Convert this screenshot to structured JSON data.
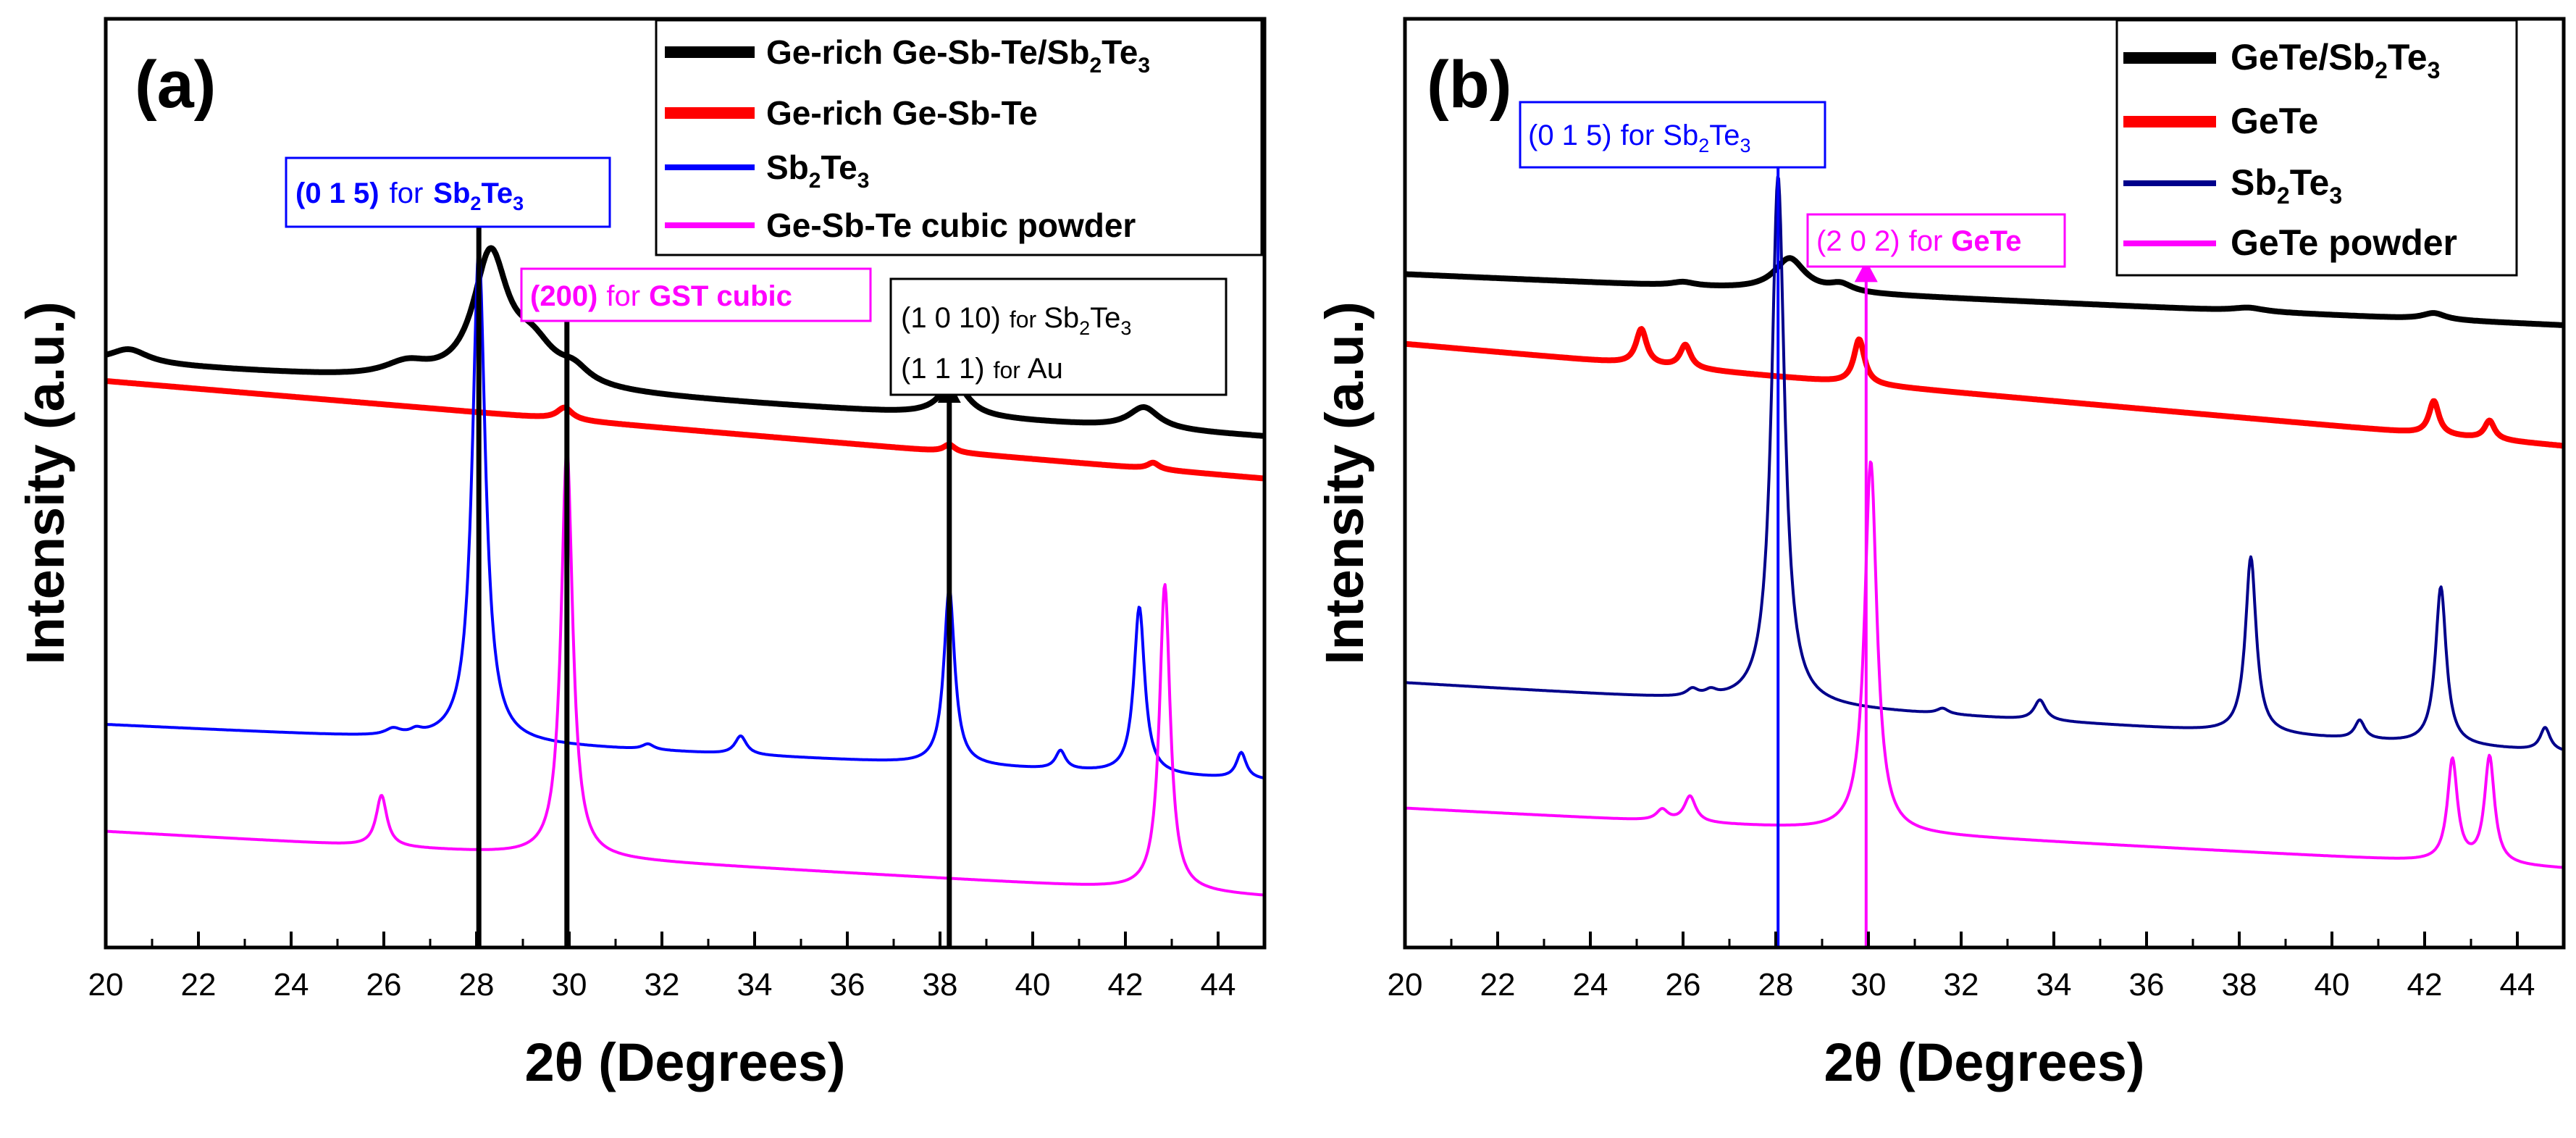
{
  "figure": {
    "panels": [
      {
        "id": "a",
        "panel_label": "(a)",
        "xlabel": "2θ (Degrees)",
        "ylabel": "Intensity (a.u.)",
        "legend": [
          {
            "prefix": "Ge-rich Ge-Sb-Te/Sb",
            "sub": "2",
            "mid": "Te",
            "sub2": "3",
            "color": "#000000"
          },
          {
            "prefix": "Ge-rich Ge-Sb-Te",
            "sub": "",
            "mid": "",
            "sub2": "",
            "color": "#ff0000"
          },
          {
            "prefix": "Sb",
            "sub": "2",
            "mid": "Te",
            "sub2": "3",
            "color": "#0000ff"
          },
          {
            "prefix": "Ge-Sb-Te cubic powder",
            "sub": "",
            "mid": "",
            "sub2": "",
            "color": "#ff00ff"
          }
        ],
        "annotations": {
          "sb2te3_015": {
            "miller": "(0 1 5)",
            "for": "for",
            "phase_prefix": "Sb",
            "phase_sub": "2",
            "phase_mid": "Te",
            "phase_sub2": "3",
            "color": "#0000ff"
          },
          "gst_200": {
            "miller": "(200)",
            "for": "for",
            "phase": "GST cubic",
            "color": "#ff00ff"
          },
          "sb2te3_1010": {
            "miller": "(1 0 10)",
            "for": "for",
            "phase_prefix": "Sb",
            "phase_sub": "2",
            "phase_mid": "Te",
            "phase_sub2": "3",
            "color": "#000000"
          },
          "au_111": {
            "miller": "(1 1 1)",
            "for": "for",
            "phase": "Au",
            "color": "#000000"
          }
        }
      },
      {
        "id": "b",
        "panel_label": "(b)",
        "xlabel": "2θ (Degrees)",
        "ylabel": "Intensity (a.u.)",
        "legend": [
          {
            "prefix": "GeTe/Sb",
            "sub": "2",
            "mid": "Te",
            "sub2": "3",
            "color": "#000000"
          },
          {
            "prefix": "GeTe",
            "sub": "",
            "mid": "",
            "sub2": "",
            "color": "#ff0000"
          },
          {
            "prefix": "Sb",
            "sub": "2",
            "mid": "Te",
            "sub2": "3",
            "color": "#00008b"
          },
          {
            "prefix": "GeTe powder",
            "sub": "",
            "mid": "",
            "sub2": "",
            "color": "#ff00ff"
          }
        ],
        "annotations": {
          "sb2te3_015": {
            "miller": "(0 1 5)",
            "for": "for",
            "phase_prefix": "Sb",
            "phase_sub": "2",
            "phase_mid": "Te",
            "phase_sub2": "3",
            "color": "#0000ff"
          },
          "gete_202": {
            "miller": "(2 0 2)",
            "for": "for",
            "phase": "GeTe",
            "color": "#ff00ff"
          }
        }
      }
    ]
  },
  "chart_data": [
    {
      "type": "line",
      "panel": "a",
      "xlabel": "2θ (Degrees)",
      "ylabel": "Intensity (a.u.)",
      "xlim": [
        20,
        45
      ],
      "ylim": [
        0,
        100
      ],
      "xticks": [
        "20",
        "22",
        "24",
        "26",
        "28",
        "30",
        "32",
        "34",
        "36",
        "38",
        "40",
        "42",
        "44"
      ],
      "yticks_visible": false,
      "series": [
        {
          "name": "Ge-rich Ge-Sb-Te/Sb2Te3",
          "color": "#000000",
          "width": 8,
          "baseline": [
            [
              20,
              63
            ],
            [
              45,
              55
            ]
          ],
          "peaks": [
            [
              20.5,
              1.5,
              0.5
            ],
            [
              26.5,
              1.5,
              0.6
            ],
            [
              28.3,
              13.5,
              0.45
            ],
            [
              29.2,
              4,
              0.6
            ],
            [
              30.1,
              1.5,
              0.4
            ],
            [
              38.3,
              3.8,
              0.35
            ],
            [
              42.4,
              2.3,
              0.4
            ]
          ]
        },
        {
          "name": "Ge-rich Ge-Sb-Te",
          "color": "#ff0000",
          "width": 8,
          "baseline": [
            [
              20,
              61
            ],
            [
              45,
              50.5
            ]
          ],
          "peaks": [
            [
              29.9,
              1.3,
              0.2
            ],
            [
              38.2,
              0.8,
              0.15
            ],
            [
              42.6,
              0.7,
              0.15
            ]
          ]
        },
        {
          "name": "Sb2Te3",
          "color": "#0000ff",
          "width": 4,
          "baseline": [
            [
              20,
              24
            ],
            [
              45,
              18
            ]
          ],
          "peaks": [
            [
              26.2,
              0.7,
              0.2
            ],
            [
              26.7,
              0.5,
              0.15
            ],
            [
              28.05,
              53,
              0.17
            ],
            [
              31.7,
              0.6,
              0.15
            ],
            [
              33.7,
              2,
              0.15
            ],
            [
              38.2,
              19,
              0.14
            ],
            [
              40.6,
              2,
              0.13
            ],
            [
              42.3,
              18,
              0.14
            ],
            [
              44.5,
              2.8,
              0.13
            ]
          ]
        },
        {
          "name": "Ge-Sb-Te cubic powder",
          "color": "#ff00ff",
          "width": 4,
          "baseline": [
            [
              20,
              12.5
            ],
            [
              45,
              5.5
            ]
          ],
          "peaks": [
            [
              25.95,
              5.5,
              0.14
            ],
            [
              29.95,
              44,
              0.15
            ],
            [
              42.85,
              33,
              0.14
            ]
          ]
        }
      ],
      "annotations": [
        {
          "x": 28.05,
          "text": "(0 1 5) for Sb2Te3",
          "arrow_top": 80.5,
          "color": "#000000"
        },
        {
          "x": 29.95,
          "text": "(200) for GST cubic",
          "arrow_top": 71.5,
          "color": "#000000"
        },
        {
          "x": 38.2,
          "text": "(1 0 10) for Sb2Te3 / (1 1 1) for Au",
          "arrow_top": 61,
          "color": "#000000"
        }
      ]
    },
    {
      "type": "line",
      "panel": "b",
      "xlabel": "2θ (Degrees)",
      "ylabel": "Intensity (a.u.)",
      "xlim": [
        20,
        45
      ],
      "ylim": [
        0,
        100
      ],
      "xticks": [
        "20",
        "22",
        "24",
        "26",
        "28",
        "30",
        "32",
        "34",
        "36",
        "38",
        "40",
        "42",
        "44"
      ],
      "yticks_visible": false,
      "series": [
        {
          "name": "GeTe/Sb2Te3",
          "color": "#000000",
          "width": 8,
          "baseline": [
            [
              20,
              72.5
            ],
            [
              45,
              67
            ]
          ],
          "peaks": [
            [
              26.0,
              0.4,
              0.3
            ],
            [
              28.3,
              3.5,
              0.4
            ],
            [
              29.4,
              0.8,
              0.3
            ],
            [
              38.2,
              0.4,
              0.4
            ],
            [
              42.2,
              0.7,
              0.3
            ]
          ]
        },
        {
          "name": "GeTe",
          "color": "#ff0000",
          "width": 8,
          "baseline": [
            [
              20,
              65
            ],
            [
              45,
              54
            ]
          ],
          "peaks": [
            [
              25.1,
              3.8,
              0.14
            ],
            [
              26.05,
              2.5,
              0.14
            ],
            [
              29.8,
              4.8,
              0.14
            ],
            [
              42.2,
              3.6,
              0.13
            ],
            [
              43.4,
              2,
              0.13
            ]
          ]
        },
        {
          "name": "Sb2Te3",
          "color": "#00008b",
          "width": 4,
          "baseline": [
            [
              20,
              28.5
            ],
            [
              45,
              21
            ]
          ],
          "peaks": [
            [
              26.2,
              0.8,
              0.15
            ],
            [
              26.6,
              0.6,
              0.15
            ],
            [
              28.05,
              57,
              0.17
            ],
            [
              31.6,
              0.6,
              0.15
            ],
            [
              33.7,
              2.2,
              0.15
            ],
            [
              38.25,
              19,
              0.14
            ],
            [
              40.6,
              2,
              0.13
            ],
            [
              42.35,
              17,
              0.14
            ],
            [
              44.6,
              2.5,
              0.13
            ]
          ]
        },
        {
          "name": "GeTe powder",
          "color": "#ff00ff",
          "width": 4,
          "baseline": [
            [
              20,
              15
            ],
            [
              45,
              8.5
            ]
          ],
          "peaks": [
            [
              25.55,
              1.2,
              0.15
            ],
            [
              26.15,
              2.8,
              0.15
            ],
            [
              30.05,
              40,
              0.16
            ],
            [
              42.6,
              11,
              0.13
            ],
            [
              43.4,
              11.5,
              0.13
            ]
          ]
        }
      ],
      "annotations": [
        {
          "x": 28.05,
          "text": "(0 1 5) for Sb2Te3",
          "arrow_top": 86.5,
          "color": "#0000ff"
        },
        {
          "x": 29.95,
          "text": "(2 0 2) for GeTe",
          "arrow_top": 74,
          "color": "#ff00ff"
        }
      ]
    }
  ]
}
